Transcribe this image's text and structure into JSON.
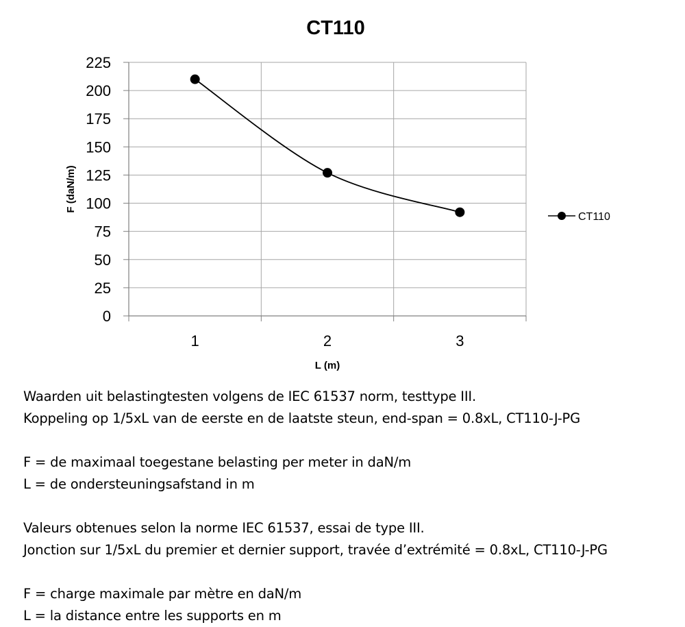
{
  "chart_data": {
    "type": "line",
    "title": "CT110",
    "xlabel": "L (m)",
    "ylabel": "F (daN/m)",
    "categories": [
      "1",
      "2",
      "3"
    ],
    "x": [
      1,
      2,
      3
    ],
    "ylim": [
      0,
      225
    ],
    "yticks": [
      0,
      25,
      50,
      75,
      100,
      125,
      150,
      175,
      200,
      225
    ],
    "grid": true,
    "smooth": true,
    "legend_position": "right",
    "series": [
      {
        "name": "CT110",
        "values": [
          210,
          127,
          92
        ],
        "color": "#000000"
      }
    ]
  },
  "notes": {
    "nl": [
      "Waarden uit belastingtesten volgens de IEC 61537 norm, testtype III.",
      "Koppeling op 1/5xL van de eerste en de laatste steun, end-span = 0.8xL, CT110-J-PG"
    ],
    "nl_defs": [
      "F = de maximaal toegestane belasting per meter in daN/m",
      "L = de ondersteuningsafstand in m"
    ],
    "fr": [
      "Valeurs obtenues selon la norme IEC 61537, essai de type III.",
      "Jonction sur 1/5xL du premier et dernier support, travée d’extrémité = 0.8xL, CT110-J-PG"
    ],
    "fr_defs": [
      "F = charge maximale par mètre en daN/m",
      "L = la distance entre les supports en m"
    ]
  }
}
